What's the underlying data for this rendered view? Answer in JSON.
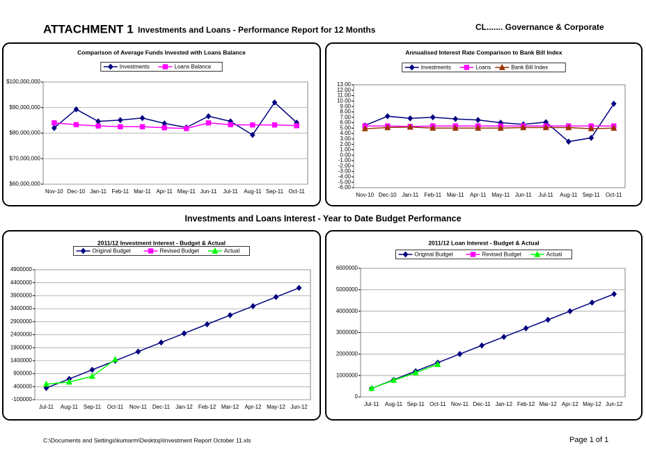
{
  "header": {
    "attachment": "ATTACHMENT 1",
    "title": "Investments and Loans - Performance Report for 12 Months",
    "department": "CL....... Governance &  Corporate"
  },
  "section_title": "Investments and Loans Interest - Year to Date Budget Performance",
  "footer": {
    "path": "C:\\Documents and Settings\\kumarm\\Desktop\\Investment Report October 11.xls",
    "page": "Page 1 of 1"
  },
  "chart_data": [
    {
      "type": "line",
      "title": "Comparison of Average Funds Invested with Loans Balance",
      "categories": [
        "Nov-10",
        "Dec-10",
        "Jan-11",
        "Feb-11",
        "Mar-11",
        "Apr-11",
        "May-11",
        "Jun-11",
        "Jul-11",
        "Aug-11",
        "Sep-11",
        "Oct-11"
      ],
      "series": [
        {
          "name": "Investments",
          "color": "#000080",
          "marker": "diamond",
          "values": [
            82000000,
            89300000,
            84600000,
            85100000,
            85900000,
            83800000,
            82200000,
            86600000,
            84600000,
            79300000,
            92000000,
            84100000
          ]
        },
        {
          "name": "Loans Balance",
          "color": "#ff00ff",
          "marker": "square",
          "values": [
            84000000,
            83300000,
            82800000,
            82500000,
            82500000,
            82100000,
            81800000,
            84000000,
            83300000,
            83200000,
            83200000,
            82900000
          ]
        }
      ],
      "ylim": [
        60000000,
        100000000
      ],
      "yticks": [
        {
          "value": 60000000,
          "label": "$60,000,000"
        },
        {
          "value": 70000000,
          "label": "$70,000,000"
        },
        {
          "value": 80000000,
          "label": "$80,000,000"
        },
        {
          "value": 90000000,
          "label": "$90,000,000"
        },
        {
          "value": 100000000,
          "label": "$100,000,000"
        }
      ],
      "grid": true
    },
    {
      "type": "line",
      "title": "Annualised Interest Rate Comparison to Bank Bill Index",
      "categories": [
        "Nov-10",
        "Dec-10",
        "Jan-11",
        "Feb-11",
        "Mar-11",
        "Apr-11",
        "May-11",
        "Jun-11",
        "Jul-11",
        "Aug-11",
        "Sep-11",
        "Oct-11"
      ],
      "series": [
        {
          "name": "Investments",
          "color": "#000080",
          "marker": "diamond",
          "values": [
            5.5,
            7.2,
            6.8,
            7.0,
            6.7,
            6.5,
            6.0,
            5.7,
            6.1,
            2.5,
            3.2,
            9.5
          ]
        },
        {
          "name": "Loans",
          "color": "#ff00ff",
          "marker": "square",
          "values": [
            5.4,
            5.4,
            5.3,
            5.4,
            5.4,
            5.4,
            5.4,
            5.4,
            5.4,
            5.4,
            5.4,
            5.4
          ]
        },
        {
          "name": "Bank Bill Index",
          "color": "#993300",
          "marker": "triangle",
          "values": [
            4.9,
            5.1,
            5.2,
            5.0,
            5.0,
            5.0,
            5.0,
            5.1,
            5.1,
            5.1,
            4.9,
            5.0
          ]
        }
      ],
      "ylim": [
        -6,
        13
      ],
      "yticks": [
        {
          "value": -6,
          "label": "-6.00"
        },
        {
          "value": -5,
          "label": "-5.00"
        },
        {
          "value": -4,
          "label": "-4.00"
        },
        {
          "value": -3,
          "label": "-3.00"
        },
        {
          "value": -2,
          "label": "-2.00"
        },
        {
          "value": -1,
          "label": "-1.00"
        },
        {
          "value": 0,
          "label": "0.00"
        },
        {
          "value": 1,
          "label": "1.00"
        },
        {
          "value": 2,
          "label": "2.00"
        },
        {
          "value": 3,
          "label": "3.00"
        },
        {
          "value": 4,
          "label": "4.00"
        },
        {
          "value": 5,
          "label": "5.00"
        },
        {
          "value": 6,
          "label": "6.00"
        },
        {
          "value": 7,
          "label": "7.00"
        },
        {
          "value": 8,
          "label": "8.00"
        },
        {
          "value": 9,
          "label": "9.00"
        },
        {
          "value": 10,
          "label": "10.00"
        },
        {
          "value": 11,
          "label": "11.00"
        },
        {
          "value": 12,
          "label": "12.00"
        },
        {
          "value": 13,
          "label": "13.00"
        }
      ],
      "grid": false
    },
    {
      "type": "line",
      "title": "2011/12 Investment Interest - Budget & Actual",
      "categories": [
        "Jul-11",
        "Aug-11",
        "Sep-11",
        "Oct-11",
        "Nov-11",
        "Dec-11",
        "Jan-12",
        "Feb-12",
        "Mar-12",
        "Apr-12",
        "May-12",
        "Jun-12"
      ],
      "series": [
        {
          "name": "Original Budget",
          "color": "#000080",
          "marker": "diamond",
          "values": [
            350000,
            700000,
            1050000,
            1400000,
            1750000,
            2100000,
            2450000,
            2800000,
            3150000,
            3500000,
            3850000,
            4200000
          ]
        },
        {
          "name": "Revised Budget",
          "color": "#ff00ff",
          "marker": "square",
          "values": [
            null,
            null,
            null,
            null,
            null,
            null,
            null,
            null,
            null,
            null,
            null,
            null
          ]
        },
        {
          "name": "Actual",
          "color": "#00ff00",
          "marker": "triangle",
          "values": [
            500000,
            580000,
            800000,
            1450000,
            null,
            null,
            null,
            null,
            null,
            null,
            null,
            null
          ]
        }
      ],
      "ylim": [
        -100000,
        4900000
      ],
      "yticks": [
        -100000,
        400000,
        900000,
        1400000,
        1900000,
        2400000,
        2900000,
        3400000,
        3900000,
        4400000,
        4900000
      ],
      "grid": true
    },
    {
      "type": "line",
      "title": "2011/12 Loan Interest - Budget & Actual",
      "categories": [
        "Jul-11",
        "Aug-11",
        "Sep-11",
        "Oct-11",
        "Nov-11",
        "Dec-11",
        "Jan-12",
        "Feb-12",
        "Mar-12",
        "Apr-12",
        "May-12",
        "Jun-12"
      ],
      "series": [
        {
          "name": "Original Budget",
          "color": "#000080",
          "marker": "diamond",
          "values": [
            400000,
            800000,
            1200000,
            1600000,
            2000000,
            2400000,
            2800000,
            3200000,
            3600000,
            4000000,
            4400000,
            4800000
          ]
        },
        {
          "name": "Revised Budget",
          "color": "#ff00ff",
          "marker": "square",
          "values": [
            null,
            null,
            null,
            null,
            null,
            null,
            null,
            null,
            null,
            null,
            null,
            null
          ]
        },
        {
          "name": "Actual",
          "color": "#00ff00",
          "marker": "triangle",
          "values": [
            400000,
            780000,
            1130000,
            1520000,
            null,
            null,
            null,
            null,
            null,
            null,
            null,
            null
          ]
        }
      ],
      "ylim": [
        0,
        6000000
      ],
      "yticks": [
        0,
        1000000,
        2000000,
        3000000,
        4000000,
        5000000,
        6000000
      ],
      "grid": true
    }
  ]
}
